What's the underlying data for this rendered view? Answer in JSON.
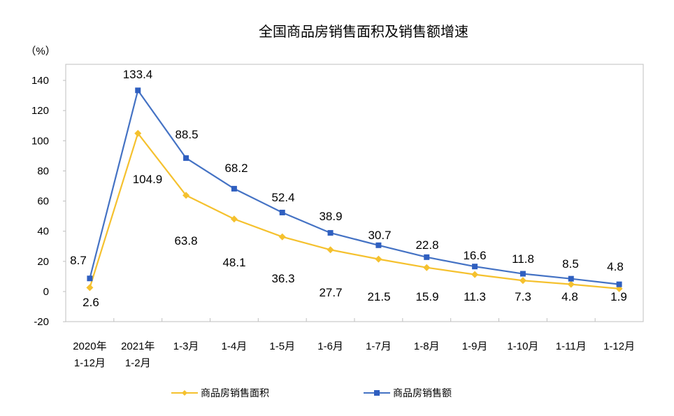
{
  "chart_data": {
    "type": "line",
    "title": "全国商品房销售面积及销售额增速",
    "ylabel": "（%）",
    "xlabel": "",
    "ylim": [
      -20,
      150
    ],
    "yticks": [
      -20,
      0,
      20,
      40,
      60,
      80,
      100,
      120,
      140
    ],
    "categories": [
      [
        "2020年",
        "1-12月"
      ],
      [
        "2021年",
        "1-2月"
      ],
      [
        "1-3月"
      ],
      [
        "1-4月"
      ],
      [
        "1-5月"
      ],
      [
        "1-6月"
      ],
      [
        "1-7月"
      ],
      [
        "1-8月"
      ],
      [
        "1-9月"
      ],
      [
        "1-10月"
      ],
      [
        "1-11月"
      ],
      [
        "1-12月"
      ]
    ],
    "series": [
      {
        "name": "商品房销售面积",
        "color": "#F5C12E",
        "marker": "diamond",
        "values": [
          2.6,
          104.9,
          63.8,
          48.1,
          36.3,
          27.7,
          21.5,
          15.9,
          11.3,
          7.3,
          4.8,
          1.9
        ]
      },
      {
        "name": "商品房销售额",
        "color": "#4472C4",
        "marker": "square",
        "values": [
          8.7,
          133.4,
          88.5,
          68.2,
          52.4,
          38.9,
          30.7,
          22.8,
          16.6,
          11.8,
          8.5,
          4.8
        ]
      }
    ],
    "legend_position": "bottom",
    "grid": false
  }
}
